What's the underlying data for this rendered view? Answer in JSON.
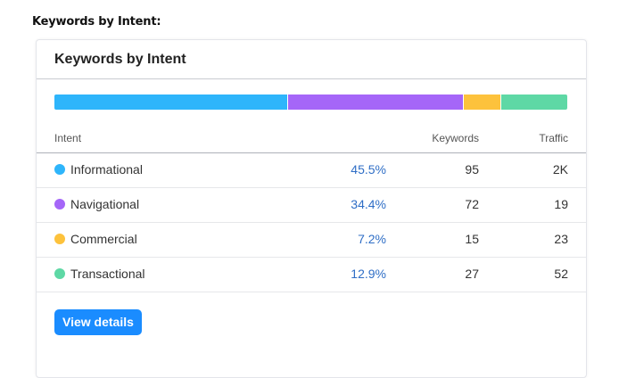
{
  "page_heading": "Keywords by Intent:",
  "card": {
    "title": "Keywords by Intent",
    "bar_segments": [
      {
        "intent": "Informational",
        "fraction": 0.455,
        "color": "#2eb5fb"
      },
      {
        "intent": "Navigational",
        "fraction": 0.344,
        "color": "#a566f8"
      },
      {
        "intent": "Commercial",
        "fraction": 0.072,
        "color": "#fdc23c"
      },
      {
        "intent": "Transactional",
        "fraction": 0.129,
        "color": "#5ed8a5"
      }
    ],
    "table": {
      "headers": {
        "intent": "Intent",
        "keywords": "Keywords",
        "traffic": "Traffic"
      },
      "rows": [
        {
          "intent": "Informational",
          "percent": "45.5%",
          "keywords": "95",
          "traffic": "2K",
          "color": "#2eb5fb"
        },
        {
          "intent": "Navigational",
          "percent": "34.4%",
          "keywords": "72",
          "traffic": "19",
          "color": "#a566f8"
        },
        {
          "intent": "Commercial",
          "percent": "7.2%",
          "keywords": "15",
          "traffic": "23",
          "color": "#fdc23c"
        },
        {
          "intent": "Transactional",
          "percent": "12.9%",
          "keywords": "27",
          "traffic": "52",
          "color": "#5ed8a5"
        }
      ]
    },
    "button_label": "View details"
  }
}
